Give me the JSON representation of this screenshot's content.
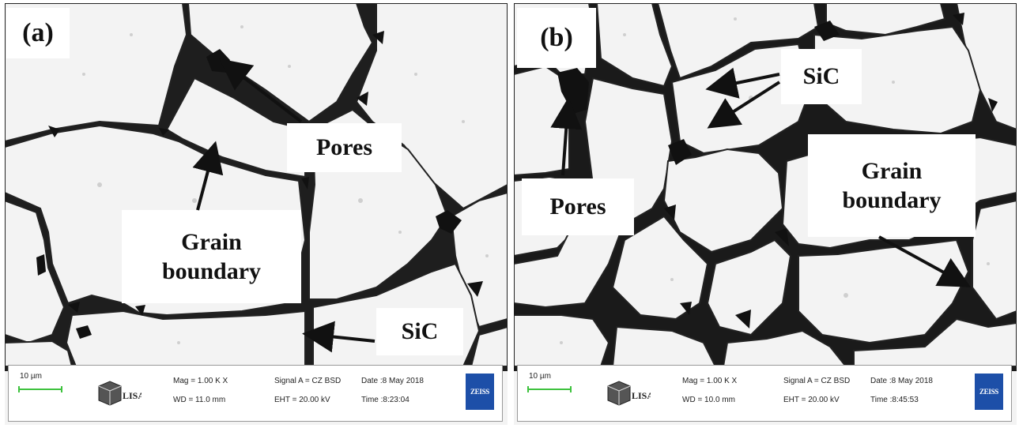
{
  "panels": [
    {
      "letter": "(a)",
      "annotations": {
        "pores": "Pores",
        "grain_boundary_line1": "Grain",
        "grain_boundary_line2": "boundary",
        "sic": "SiC"
      },
      "infobar": {
        "scale": "10 µm",
        "mag": "Mag =   1.00 K X",
        "wd": "WD = 11.0 mm",
        "signal": "Signal A = CZ BSD",
        "eht": "EHT = 20.00 kV",
        "date": "Date :8 May 2018",
        "time": "Time :8:23:04",
        "lisa": "LISA",
        "zeiss": "ZEISS"
      }
    },
    {
      "letter": "(b)",
      "annotations": {
        "pores": "Pores",
        "grain_boundary_line1": "Grain",
        "grain_boundary_line2": "boundary",
        "sic": "SiC"
      },
      "infobar": {
        "scale": "10 µm",
        "mag": "Mag =   1.00 K X",
        "wd": "WD = 10.0 mm",
        "signal": "Signal A = CZ BSD",
        "eht": "EHT = 20.00 kV",
        "date": "Date :8 May 2018",
        "time": "Time :8:45:53",
        "lisa": "LISA",
        "zeiss": "ZEISS"
      }
    }
  ],
  "colors": {
    "grain_fill": "#f2f2f2",
    "boundary": "#1a1a1a",
    "scale_bar": "#3ec23e",
    "zeiss_blue": "#1d4fa8"
  }
}
